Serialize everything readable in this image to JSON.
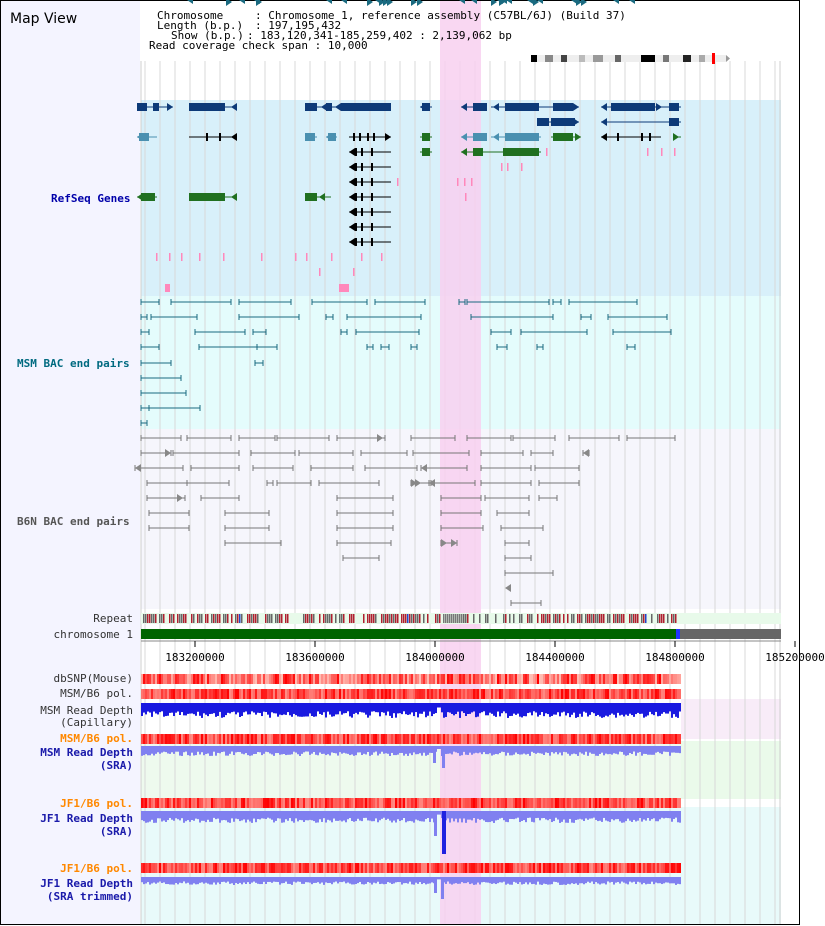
{
  "window": {
    "title": "Map View"
  },
  "info": {
    "chromosome_label": "Chromosome",
    "chromosome_value": "Chromosome 1, reference assembly (C57BL/6J) (Build 37)",
    "length_label": "Length (b.p.)",
    "length_value": "197,195,432",
    "show_label": "Show (b.p.)",
    "show_value": "183,120,341-185,259,402 : 2,139,062 bp",
    "coverage_label": "Read coverage check span",
    "coverage_value": "10,000"
  },
  "tracks": {
    "refseq": "RefSeq Genes",
    "msm_bac": "MSM BAC end pairs",
    "b6n_bac": "B6N BAC end pairs",
    "repeat": "Repeat",
    "chromosome": "chromosome 1",
    "dbsnp": "dbSNP(Mouse)",
    "msm_b6_pol_1": "MSM/B6 pol.",
    "msm_depth_cap_1": "MSM Read Depth",
    "msm_depth_cap_2": "(Capillary)",
    "msm_b6_pol_2": "MSM/B6 pol.",
    "msm_depth_sra_1": "MSM Read Depth",
    "msm_depth_sra_2": "(SRA)",
    "jf1_b6_pol_1": "JF1/B6 pol.",
    "jf1_depth_sra_1": "JF1 Read Depth",
    "jf1_depth_sra_2": "(SRA)",
    "jf1_b6_pol_2": "JF1/B6 pol.",
    "jf1_depth_trim_1": "JF1 Read Depth",
    "jf1_depth_trim_2": "(SRA trimmed)"
  },
  "axis": {
    "ticks": [
      "183200000",
      "183600000",
      "184000000",
      "184400000",
      "184800000",
      "185200000"
    ]
  },
  "colors": {
    "refseq_bg": "#d8f0fa",
    "msm_bg": "#e4fcfc",
    "b6n_bg": "#f6f6fc",
    "highlight": "#f8d0f0",
    "chromosome": "#006400",
    "gene_dark": "#0d3a78",
    "gene_mid": "#4a90b0",
    "gene_green": "#207020",
    "msm_pair": "#1a6a80",
    "b6n_pair": "#777777",
    "snp_red": "#ff4444",
    "depth_blue": "#1a1ae0",
    "depth_light": "#8080f0"
  }
}
